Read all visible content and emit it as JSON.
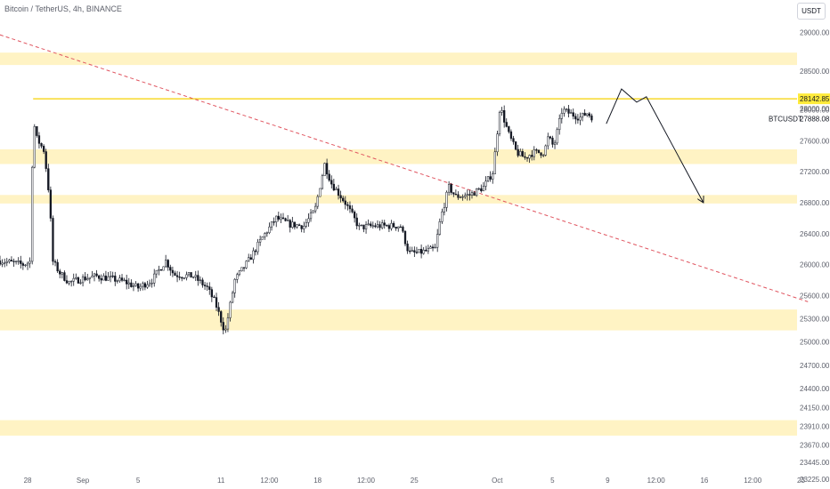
{
  "header": {
    "title": "Bitcoin / TetherUS, 4h, BINANCE",
    "currency_button": "USDT"
  },
  "colors": {
    "zone_fill": "#fff3c4",
    "resistance_line": "#f5d000",
    "price_tag_bg": "#ffeb3b",
    "trendline": "#e05560",
    "candle": "#131722",
    "axis_text": "#5d606b"
  },
  "chart_data": {
    "type": "candlestick",
    "symbol": "BTCUSDT",
    "interval": "4h",
    "exchange": "BINANCE",
    "y_ticks": [
      29000.0,
      28500.0,
      28000.0,
      27600.0,
      27200.0,
      26800.0,
      26400.0,
      26000.0,
      25600.0,
      25300.0,
      25000.0,
      24700.0,
      24400.0,
      24150.0,
      23910.0,
      23670.0,
      23445.0,
      23225.0
    ],
    "y_tick_labels": [
      "29000.00",
      "28500.00",
      "28000.00",
      "27600.00",
      "27200.00",
      "26800.00",
      "26400.00",
      "26000.00",
      "25600.00",
      "25300.00",
      "25000.00",
      "24700.00",
      "24400.00",
      "24150.00",
      "23910.00",
      "23670.00",
      "23445.00",
      "23225.00"
    ],
    "x_ticks": [
      {
        "label": "28",
        "t": 0
      },
      {
        "label": "Sep",
        "t": 4
      },
      {
        "label": "5",
        "t": 8
      },
      {
        "label": "11",
        "t": 14
      },
      {
        "label": "12:00",
        "t": 17.5
      },
      {
        "label": "18",
        "t": 21
      },
      {
        "label": "12:00",
        "t": 24.5
      },
      {
        "label": "25",
        "t": 28
      },
      {
        "label": "Oct",
        "t": 34
      },
      {
        "label": "5",
        "t": 38
      },
      {
        "label": "9",
        "t": 42
      },
      {
        "label": "12:00",
        "t": 45.5
      },
      {
        "label": "16",
        "t": 49
      },
      {
        "label": "12:00",
        "t": 52.5
      },
      {
        "label": "23",
        "t": 56
      }
    ],
    "zones": [
      {
        "low": 28580,
        "high": 28740
      },
      {
        "low": 27300,
        "high": 27490
      },
      {
        "low": 26790,
        "high": 26900
      },
      {
        "low": 25150,
        "high": 25420
      },
      {
        "low": 23790,
        "high": 23990
      }
    ],
    "resistance_level": 28142.85,
    "last_price": 27888.08,
    "price_labels": [
      "28142.85",
      "28000.00",
      "BTCUSDT",
      "27888.08"
    ],
    "trendline": [
      {
        "t": -2,
        "price": 28970
      },
      {
        "t": 56.5,
        "price": 25520
      }
    ],
    "projection_path": [
      {
        "t": 41.9,
        "price": 27820
      },
      {
        "t": 43.0,
        "price": 28270
      },
      {
        "t": 44.1,
        "price": 28100
      },
      {
        "t": 44.8,
        "price": 28170
      },
      {
        "t": 48.9,
        "price": 26810
      }
    ],
    "candle_anchors": [
      [
        -2.0,
        26050
      ],
      [
        -0.3,
        26000
      ],
      [
        0.2,
        26040
      ],
      [
        0.4,
        27920
      ],
      [
        0.6,
        27650
      ],
      [
        1.2,
        27470
      ],
      [
        1.6,
        26830
      ],
      [
        1.8,
        26050
      ],
      [
        2.3,
        25900
      ],
      [
        3.0,
        25770
      ],
      [
        4.0,
        25820
      ],
      [
        5.0,
        25850
      ],
      [
        6.0,
        25820
      ],
      [
        7.0,
        25780
      ],
      [
        8.0,
        25700
      ],
      [
        9.0,
        25800
      ],
      [
        10.0,
        26050
      ],
      [
        10.6,
        25870
      ],
      [
        12.0,
        25850
      ],
      [
        13.0,
        25700
      ],
      [
        13.6,
        25500
      ],
      [
        14.3,
        25120
      ],
      [
        15.0,
        25800
      ],
      [
        16.0,
        26050
      ],
      [
        17.0,
        26350
      ],
      [
        18.0,
        26600
      ],
      [
        19.0,
        26520
      ],
      [
        20.0,
        26500
      ],
      [
        20.8,
        26700
      ],
      [
        21.5,
        27300
      ],
      [
        22.0,
        27050
      ],
      [
        23.0,
        26800
      ],
      [
        24.0,
        26480
      ],
      [
        25.0,
        26500
      ],
      [
        26.0,
        26500
      ],
      [
        27.0,
        26500
      ],
      [
        27.6,
        26150
      ],
      [
        28.2,
        26150
      ],
      [
        29.5,
        26200
      ],
      [
        29.9,
        26600
      ],
      [
        30.5,
        27000
      ],
      [
        31.0,
        26880
      ],
      [
        32.0,
        26900
      ],
      [
        33.0,
        27000
      ],
      [
        33.7,
        27200
      ],
      [
        34.2,
        28050
      ],
      [
        34.8,
        27700
      ],
      [
        35.4,
        27450
      ],
      [
        36.0,
        27380
      ],
      [
        36.6,
        27450
      ],
      [
        37.4,
        27450
      ],
      [
        37.7,
        27650
      ],
      [
        38.1,
        27520
      ],
      [
        38.7,
        28000
      ],
      [
        39.3,
        27950
      ],
      [
        40.0,
        27900
      ],
      [
        40.5,
        27960
      ],
      [
        41.0,
        27890
      ]
    ],
    "x_range": [
      -2.0,
      57.0
    ],
    "y_range": [
      23100,
      29420
    ],
    "grid": false
  }
}
